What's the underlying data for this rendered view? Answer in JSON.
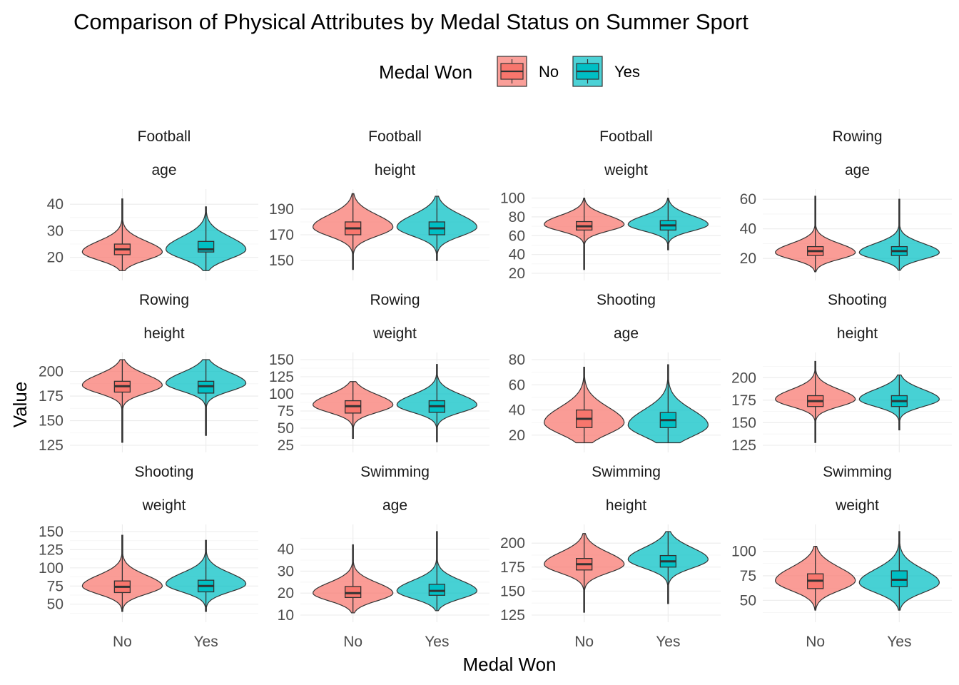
{
  "title": "Comparison of Physical Attributes by Medal Status on Summer Sport",
  "legend": {
    "title": "Medal Won",
    "position": "top",
    "items": [
      {
        "label": "No",
        "color": "#F8766D"
      },
      {
        "label": "Yes",
        "color": "#00BFC4"
      }
    ]
  },
  "xlabel": "Medal Won",
  "ylabel": "Value",
  "chart_data": {
    "type": "violin",
    "categories": [
      "No",
      "Yes"
    ],
    "colors": {
      "No": "#F8766D",
      "Yes": "#00BFC4"
    },
    "grid": true,
    "panels": [
      {
        "sport": "Football",
        "attribute": "age",
        "ylim": [
          14,
          43
        ],
        "ticks": [
          20,
          30,
          40
        ],
        "groups": [
          {
            "category": "No",
            "min": 15,
            "max": 42,
            "q1": 21,
            "median": 23,
            "q3": 25,
            "mode": 22,
            "spread": 3
          },
          {
            "category": "Yes",
            "min": 15,
            "max": 39,
            "q1": 22,
            "median": 23,
            "q3": 26,
            "mode": 23,
            "spread": 3.5
          }
        ]
      },
      {
        "sport": "Football",
        "attribute": "height",
        "ylim": [
          140,
          200
        ],
        "ticks": [
          150,
          170,
          190
        ],
        "groups": [
          {
            "category": "No",
            "min": 143,
            "max": 202,
            "q1": 170,
            "median": 175,
            "q3": 180,
            "mode": 176,
            "spread": 7
          },
          {
            "category": "Yes",
            "min": 150,
            "max": 200,
            "q1": 170,
            "median": 175,
            "q3": 180,
            "mode": 176,
            "spread": 7
          }
        ]
      },
      {
        "sport": "Football",
        "attribute": "weight",
        "ylim": [
          20,
          102
        ],
        "ticks": [
          20,
          40,
          60,
          80,
          100
        ],
        "groups": [
          {
            "category": "No",
            "min": 24,
            "max": 100,
            "q1": 66,
            "median": 70,
            "q3": 75,
            "mode": 72,
            "spread": 7
          },
          {
            "category": "Yes",
            "min": 45,
            "max": 100,
            "q1": 66,
            "median": 71,
            "q3": 76,
            "mode": 72,
            "spread": 7
          }
        ]
      },
      {
        "sport": "Rowing",
        "attribute": "age",
        "ylim": [
          10,
          62
        ],
        "ticks": [
          20,
          40,
          60
        ],
        "groups": [
          {
            "category": "No",
            "min": 11,
            "max": 62,
            "q1": 22,
            "median": 25,
            "q3": 28,
            "mode": 24,
            "spread": 4.5
          },
          {
            "category": "Yes",
            "min": 12,
            "max": 60,
            "q1": 22,
            "median": 25,
            "q3": 28,
            "mode": 24,
            "spread": 4.5
          }
        ]
      },
      {
        "sport": "Rowing",
        "attribute": "height",
        "ylim": [
          125,
          212
        ],
        "ticks": [
          125,
          150,
          175,
          200
        ],
        "groups": [
          {
            "category": "No",
            "min": 128,
            "max": 212,
            "q1": 179,
            "median": 185,
            "q3": 190,
            "mode": 186,
            "spread": 8
          },
          {
            "category": "Yes",
            "min": 135,
            "max": 212,
            "q1": 178,
            "median": 185,
            "q3": 190,
            "mode": 188,
            "spread": 8
          }
        ]
      },
      {
        "sport": "Rowing",
        "attribute": "weight",
        "ylim": [
          25,
          150
        ],
        "ticks": [
          25,
          50,
          75,
          100,
          125,
          150
        ],
        "groups": [
          {
            "category": "No",
            "min": 35,
            "max": 118,
            "q1": 72,
            "median": 82,
            "q3": 90,
            "mode": 84,
            "spread": 11
          },
          {
            "category": "Yes",
            "min": 30,
            "max": 143,
            "q1": 73,
            "median": 82,
            "q3": 90,
            "mode": 84,
            "spread": 11
          }
        ]
      },
      {
        "sport": "Shooting",
        "attribute": "age",
        "ylim": [
          12,
          80
        ],
        "ticks": [
          20,
          40,
          60,
          80
        ],
        "groups": [
          {
            "category": "No",
            "min": 14,
            "max": 74,
            "q1": 26,
            "median": 33,
            "q3": 40,
            "mode": 30,
            "spread": 9
          },
          {
            "category": "Yes",
            "min": 14,
            "max": 76,
            "q1": 26,
            "median": 32,
            "q3": 38,
            "mode": 28,
            "spread": 9
          }
        ]
      },
      {
        "sport": "Shooting",
        "attribute": "height",
        "ylim": [
          125,
          220
        ],
        "ticks": [
          125,
          150,
          175,
          200
        ],
        "groups": [
          {
            "category": "No",
            "min": 128,
            "max": 218,
            "q1": 168,
            "median": 174,
            "q3": 180,
            "mode": 176,
            "spread": 8
          },
          {
            "category": "Yes",
            "min": 142,
            "max": 203,
            "q1": 168,
            "median": 174,
            "q3": 180,
            "mode": 176,
            "spread": 8
          }
        ]
      },
      {
        "sport": "Shooting",
        "attribute": "weight",
        "ylim": [
          35,
          150
        ],
        "ticks": [
          50,
          75,
          100,
          125,
          150
        ],
        "groups": [
          {
            "category": "No",
            "min": 40,
            "max": 145,
            "q1": 66,
            "median": 74,
            "q3": 82,
            "mode": 75,
            "spread": 11
          },
          {
            "category": "Yes",
            "min": 40,
            "max": 138,
            "q1": 67,
            "median": 75,
            "q3": 83,
            "mode": 78,
            "spread": 11
          }
        ]
      },
      {
        "sport": "Swimming",
        "attribute": "age",
        "ylim": [
          10,
          48
        ],
        "ticks": [
          10,
          20,
          30,
          40
        ],
        "groups": [
          {
            "category": "No",
            "min": 11,
            "max": 42,
            "q1": 18,
            "median": 20,
            "q3": 23,
            "mode": 20,
            "spread": 3.5
          },
          {
            "category": "Yes",
            "min": 12,
            "max": 48,
            "q1": 19,
            "median": 21,
            "q3": 24,
            "mode": 21,
            "spread": 3.5
          }
        ]
      },
      {
        "sport": "Swimming",
        "attribute": "height",
        "ylim": [
          125,
          212
        ],
        "ticks": [
          125,
          150,
          175,
          200
        ],
        "groups": [
          {
            "category": "No",
            "min": 128,
            "max": 210,
            "q1": 172,
            "median": 178,
            "q3": 184,
            "mode": 178,
            "spread": 9
          },
          {
            "category": "Yes",
            "min": 137,
            "max": 212,
            "q1": 175,
            "median": 181,
            "q3": 187,
            "mode": 183,
            "spread": 9
          }
        ]
      },
      {
        "sport": "Swimming",
        "attribute": "weight",
        "ylim": [
          35,
          120
        ],
        "ticks": [
          50,
          75,
          100
        ],
        "groups": [
          {
            "category": "No",
            "min": 40,
            "max": 105,
            "q1": 62,
            "median": 70,
            "q3": 77,
            "mode": 70,
            "spread": 10
          },
          {
            "category": "Yes",
            "min": 40,
            "max": 120,
            "q1": 64,
            "median": 71,
            "q3": 80,
            "mode": 68,
            "spread": 10
          }
        ]
      }
    ]
  }
}
